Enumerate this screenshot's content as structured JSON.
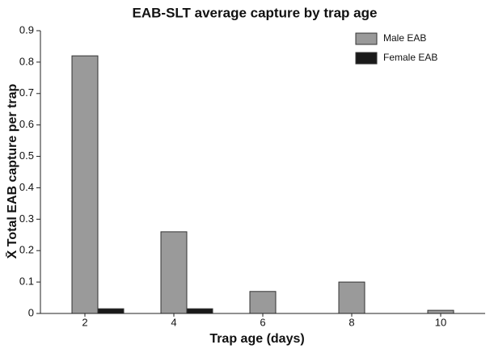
{
  "chart_data": {
    "type": "bar",
    "title": "EAB-SLT average capture by trap age",
    "xlabel": "Trap age (days)",
    "ylabel": "X̄ Total EAB capture per trap",
    "categories": [
      "2",
      "4",
      "6",
      "8",
      "10"
    ],
    "series": [
      {
        "name": "Male EAB",
        "color": "#9a9a9a",
        "values": [
          0.82,
          0.26,
          0.07,
          0.1,
          0.01
        ]
      },
      {
        "name": "Female EAB",
        "color": "#1a1a1a",
        "values": [
          0.015,
          0.015,
          0,
          0,
          0
        ]
      }
    ],
    "ylim": [
      0,
      0.9
    ],
    "yticks": [
      0,
      0.1,
      0.2,
      0.3,
      0.4,
      0.5,
      0.6,
      0.7,
      0.8,
      0.9
    ],
    "legend": "upper right"
  }
}
